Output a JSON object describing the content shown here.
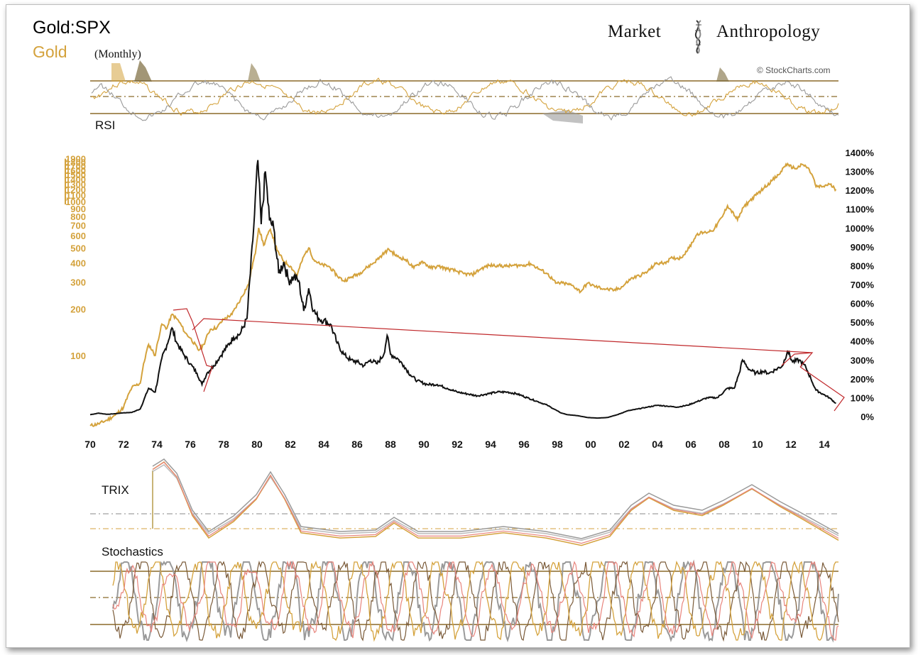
{
  "title": {
    "main": "Gold:SPX",
    "gold_label": "Gold",
    "gold_sub": "(Monthly)"
  },
  "brand": {
    "left": "Market",
    "right": "Anthropology",
    "emblem": "dna-helix-icon"
  },
  "credit": "© StockCharts.com",
  "panels": {
    "rsi": "RSI",
    "trix": "TRIX",
    "stoch": "Stochastics"
  },
  "colors": {
    "gold": "#d4a23c",
    "ratio": "#111111",
    "grey": "#9a9a9a",
    "pink": "#e8847c",
    "annotation": "#c0282b",
    "guide": "#8b6a2a"
  },
  "chart_data": {
    "type": "line",
    "x_ticks": [
      "70",
      "72",
      "74",
      "76",
      "78",
      "80",
      "82",
      "84",
      "86",
      "88",
      "90",
      "92",
      "94",
      "96",
      "98",
      "00",
      "02",
      "04",
      "06",
      "08",
      "10",
      "12",
      "14"
    ],
    "right_axis": {
      "ticks": [
        "0%",
        "100%",
        "200%",
        "300%",
        "400%",
        "500%",
        "600%",
        "700%",
        "800%",
        "900%",
        "1000%",
        "1100%",
        "1200%",
        "1300%",
        "1400%"
      ]
    },
    "left_axis": {
      "scale": "log",
      "ticks": [
        "100",
        "200",
        "300",
        "400",
        "500",
        "600",
        "700",
        "800",
        "900",
        "1000",
        "1100",
        "1200",
        "1300",
        "1400",
        "1500",
        "1600",
        "1700",
        "1800",
        "1900"
      ]
    },
    "series": [
      {
        "key": "ratio",
        "axis": "right",
        "points": [
          [
            1970.0,
            10
          ],
          [
            1970.5,
            18
          ],
          [
            1971.0,
            12
          ],
          [
            1971.5,
            15
          ],
          [
            1972.0,
            20
          ],
          [
            1972.5,
            22
          ],
          [
            1973.0,
            40
          ],
          [
            1973.5,
            150
          ],
          [
            1973.9,
            130
          ],
          [
            1974.3,
            310
          ],
          [
            1974.6,
            380
          ],
          [
            1974.9,
            470
          ],
          [
            1975.2,
            390
          ],
          [
            1975.6,
            330
          ],
          [
            1976.0,
            280
          ],
          [
            1976.4,
            230
          ],
          [
            1976.7,
            170
          ],
          [
            1977.0,
            230
          ],
          [
            1977.4,
            270
          ],
          [
            1977.8,
            320
          ],
          [
            1978.2,
            370
          ],
          [
            1978.6,
            420
          ],
          [
            1979.0,
            440
          ],
          [
            1979.4,
            520
          ],
          [
            1979.8,
            1000
          ],
          [
            1980.05,
            1360
          ],
          [
            1980.25,
            1020
          ],
          [
            1980.5,
            1300
          ],
          [
            1980.75,
            1040
          ],
          [
            1981.0,
            1000
          ],
          [
            1981.3,
            760
          ],
          [
            1981.6,
            820
          ],
          [
            1981.9,
            720
          ],
          [
            1982.2,
            740
          ],
          [
            1982.5,
            720
          ],
          [
            1982.8,
            560
          ],
          [
            1983.1,
            680
          ],
          [
            1983.4,
            560
          ],
          [
            1983.7,
            520
          ],
          [
            1984.0,
            510
          ],
          [
            1984.4,
            490
          ],
          [
            1984.8,
            390
          ],
          [
            1985.2,
            330
          ],
          [
            1985.6,
            300
          ],
          [
            1986.0,
            290
          ],
          [
            1986.4,
            270
          ],
          [
            1986.8,
            300
          ],
          [
            1987.2,
            280
          ],
          [
            1987.6,
            330
          ],
          [
            1987.8,
            430
          ],
          [
            1988.0,
            330
          ],
          [
            1988.4,
            310
          ],
          [
            1988.8,
            270
          ],
          [
            1989.2,
            220
          ],
          [
            1989.6,
            190
          ],
          [
            1990.2,
            170
          ],
          [
            1990.8,
            170
          ],
          [
            1991.4,
            150
          ],
          [
            1992.0,
            130
          ],
          [
            1992.6,
            120
          ],
          [
            1993.2,
            110
          ],
          [
            1993.8,
            120
          ],
          [
            1994.4,
            130
          ],
          [
            1995.0,
            130
          ],
          [
            1995.6,
            120
          ],
          [
            1996.2,
            100
          ],
          [
            1996.8,
            80
          ],
          [
            1997.4,
            60
          ],
          [
            1997.8,
            40
          ],
          [
            1998.2,
            20
          ],
          [
            1998.6,
            10
          ],
          [
            1999.2,
            5
          ],
          [
            1999.8,
            -5
          ],
          [
            2000.4,
            -8
          ],
          [
            2001.0,
            -5
          ],
          [
            2001.6,
            10
          ],
          [
            2002.2,
            30
          ],
          [
            2002.8,
            40
          ],
          [
            2003.4,
            50
          ],
          [
            2004.0,
            60
          ],
          [
            2004.6,
            55
          ],
          [
            2005.2,
            50
          ],
          [
            2005.8,
            60
          ],
          [
            2006.4,
            80
          ],
          [
            2007.0,
            100
          ],
          [
            2007.6,
            100
          ],
          [
            2008.2,
            150
          ],
          [
            2008.6,
            150
          ],
          [
            2008.9,
            230
          ],
          [
            2009.1,
            300
          ],
          [
            2009.5,
            250
          ],
          [
            2009.9,
            230
          ],
          [
            2010.3,
            240
          ],
          [
            2010.7,
            230
          ],
          [
            2011.1,
            250
          ],
          [
            2011.5,
            270
          ],
          [
            2011.8,
            350
          ],
          [
            2012.1,
            290
          ],
          [
            2012.5,
            300
          ],
          [
            2012.9,
            260
          ],
          [
            2013.2,
            200
          ],
          [
            2013.5,
            140
          ],
          [
            2013.9,
            120
          ],
          [
            2014.3,
            100
          ],
          [
            2014.7,
            70
          ]
        ]
      },
      {
        "key": "gold",
        "axis": "left",
        "points": [
          [
            1970.0,
            35
          ],
          [
            1970.5,
            36
          ],
          [
            1971.0,
            38
          ],
          [
            1971.5,
            41
          ],
          [
            1972.0,
            46
          ],
          [
            1972.5,
            62
          ],
          [
            1973.0,
            66
          ],
          [
            1973.5,
            118
          ],
          [
            1973.9,
            100
          ],
          [
            1974.3,
            160
          ],
          [
            1974.6,
            150
          ],
          [
            1974.9,
            185
          ],
          [
            1975.3,
            168
          ],
          [
            1975.7,
            140
          ],
          [
            1976.0,
            130
          ],
          [
            1976.5,
            108
          ],
          [
            1976.8,
            118
          ],
          [
            1977.2,
            148
          ],
          [
            1977.6,
            152
          ],
          [
            1978.0,
            172
          ],
          [
            1978.5,
            185
          ],
          [
            1979.0,
            230
          ],
          [
            1979.5,
            290
          ],
          [
            1979.9,
            460
          ],
          [
            1980.1,
            675
          ],
          [
            1980.4,
            520
          ],
          [
            1980.8,
            660
          ],
          [
            1981.2,
            480
          ],
          [
            1981.6,
            410
          ],
          [
            1982.0,
            380
          ],
          [
            1982.4,
            330
          ],
          [
            1982.8,
            440
          ],
          [
            1983.1,
            500
          ],
          [
            1983.4,
            420
          ],
          [
            1983.8,
            390
          ],
          [
            1984.3,
            380
          ],
          [
            1984.8,
            330
          ],
          [
            1985.2,
            305
          ],
          [
            1985.7,
            325
          ],
          [
            1986.2,
            345
          ],
          [
            1986.6,
            375
          ],
          [
            1987.0,
            400
          ],
          [
            1987.5,
            450
          ],
          [
            1987.9,
            490
          ],
          [
            1988.4,
            440
          ],
          [
            1988.9,
            420
          ],
          [
            1989.4,
            370
          ],
          [
            1989.9,
            410
          ],
          [
            1990.4,
            370
          ],
          [
            1990.9,
            380
          ],
          [
            1991.4,
            365
          ],
          [
            1991.9,
            355
          ],
          [
            1992.4,
            340
          ],
          [
            1992.9,
            335
          ],
          [
            1993.4,
            365
          ],
          [
            1993.9,
            385
          ],
          [
            1994.4,
            385
          ],
          [
            1994.9,
            380
          ],
          [
            1995.4,
            385
          ],
          [
            1995.9,
            385
          ],
          [
            1996.4,
            395
          ],
          [
            1996.9,
            365
          ],
          [
            1997.4,
            340
          ],
          [
            1997.9,
            295
          ],
          [
            1998.4,
            295
          ],
          [
            1998.9,
            285
          ],
          [
            1999.4,
            260
          ],
          [
            1999.8,
            295
          ],
          [
            2000.3,
            280
          ],
          [
            2000.9,
            270
          ],
          [
            2001.4,
            265
          ],
          [
            2001.9,
            280
          ],
          [
            2002.4,
            315
          ],
          [
            2002.9,
            330
          ],
          [
            2003.4,
            350
          ],
          [
            2003.9,
            395
          ],
          [
            2004.4,
            400
          ],
          [
            2004.9,
            430
          ],
          [
            2005.4,
            430
          ],
          [
            2005.9,
            500
          ],
          [
            2006.4,
            620
          ],
          [
            2006.9,
            630
          ],
          [
            2007.4,
            660
          ],
          [
            2007.9,
            800
          ],
          [
            2008.2,
            940
          ],
          [
            2008.8,
            760
          ],
          [
            2009.2,
            930
          ],
          [
            2009.9,
            1100
          ],
          [
            2010.4,
            1230
          ],
          [
            2010.9,
            1380
          ],
          [
            2011.3,
            1500
          ],
          [
            2011.7,
            1750
          ],
          [
            2011.9,
            1700
          ],
          [
            2012.3,
            1640
          ],
          [
            2012.7,
            1740
          ],
          [
            2013.0,
            1660
          ],
          [
            2013.3,
            1470
          ],
          [
            2013.5,
            1250
          ],
          [
            2013.9,
            1250
          ],
          [
            2014.3,
            1300
          ],
          [
            2014.7,
            1200
          ]
        ]
      }
    ],
    "annotations": [
      "bracket at 1974-75 peak",
      "converging trend line from 1976 to 2013",
      "bracket at 2011-12 peak"
    ]
  }
}
